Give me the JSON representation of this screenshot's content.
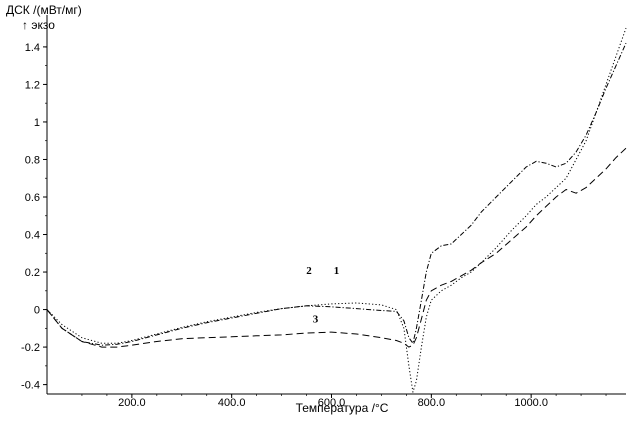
{
  "chart_data": {
    "type": "line",
    "title": "",
    "ylabel": "ДСК /(мВт/мг)",
    "exo_label": "↑ экзо",
    "xlabel": "Температура /°C",
    "xlim": [
      30,
      1190
    ],
    "ylim": [
      -0.45,
      1.57
    ],
    "xticks": [
      200,
      400,
      600,
      800,
      1000
    ],
    "xtick_labels": [
      "200.0",
      "400.0",
      "600.0",
      "800.0",
      "1000.0"
    ],
    "yticks": [
      -0.4,
      -0.2,
      0,
      0.2,
      0.4,
      0.6,
      0.8,
      1,
      1.2,
      1.4
    ],
    "ytick_labels": [
      "-0.4",
      "-0.2",
      "0",
      "0.2",
      "0.4",
      "0.6",
      "0.8",
      "1",
      "1.2",
      "1.4"
    ],
    "grid": false,
    "series": [
      {
        "name": "1",
        "style": "dotted",
        "x": [
          30,
          60,
          100,
          140,
          170,
          200,
          250,
          300,
          350,
          400,
          450,
          500,
          550,
          600,
          650,
          700,
          730,
          745,
          755,
          763,
          770,
          780,
          790,
          800,
          820,
          840,
          860,
          880,
          900,
          930,
          960,
          990,
          1010,
          1030,
          1050,
          1070,
          1090,
          1110,
          1130,
          1150,
          1170,
          1190
        ],
        "y": [
          0.0,
          -0.08,
          -0.15,
          -0.18,
          -0.18,
          -0.165,
          -0.13,
          -0.095,
          -0.065,
          -0.04,
          -0.015,
          0.005,
          0.02,
          0.03,
          0.035,
          0.025,
          0.0,
          -0.1,
          -0.3,
          -0.44,
          -0.38,
          -0.2,
          -0.04,
          0.05,
          0.1,
          0.13,
          0.17,
          0.2,
          0.25,
          0.33,
          0.42,
          0.5,
          0.56,
          0.6,
          0.65,
          0.7,
          0.8,
          0.9,
          1.05,
          1.2,
          1.35,
          1.5
        ]
      },
      {
        "name": "2",
        "style": "dashdot",
        "x": [
          30,
          60,
          100,
          140,
          170,
          200,
          250,
          300,
          350,
          400,
          450,
          500,
          550,
          600,
          650,
          700,
          730,
          745,
          755,
          763,
          770,
          780,
          790,
          800,
          820,
          840,
          860,
          880,
          900,
          930,
          960,
          990,
          1010,
          1030,
          1050,
          1070,
          1090,
          1110,
          1130,
          1150,
          1170,
          1190
        ],
        "y": [
          0.0,
          -0.1,
          -0.17,
          -0.19,
          -0.185,
          -0.17,
          -0.135,
          -0.1,
          -0.07,
          -0.045,
          -0.02,
          0.005,
          0.02,
          0.015,
          0.005,
          -0.005,
          -0.01,
          -0.06,
          -0.15,
          -0.18,
          -0.1,
          0.05,
          0.2,
          0.3,
          0.34,
          0.35,
          0.4,
          0.45,
          0.52,
          0.6,
          0.68,
          0.76,
          0.79,
          0.78,
          0.76,
          0.78,
          0.84,
          0.93,
          1.05,
          1.18,
          1.3,
          1.42
        ]
      },
      {
        "name": "3",
        "style": "dashed",
        "x": [
          30,
          60,
          100,
          140,
          170,
          200,
          250,
          300,
          350,
          400,
          450,
          500,
          550,
          600,
          650,
          700,
          730,
          745,
          755,
          763,
          770,
          780,
          790,
          800,
          820,
          840,
          860,
          880,
          900,
          930,
          960,
          990,
          1010,
          1030,
          1050,
          1070,
          1090,
          1110,
          1130,
          1150,
          1170,
          1190
        ],
        "y": [
          0.0,
          -0.1,
          -0.17,
          -0.2,
          -0.2,
          -0.19,
          -0.17,
          -0.155,
          -0.15,
          -0.145,
          -0.14,
          -0.135,
          -0.125,
          -0.12,
          -0.13,
          -0.15,
          -0.165,
          -0.18,
          -0.2,
          -0.19,
          -0.15,
          -0.05,
          0.05,
          0.1,
          0.13,
          0.15,
          0.18,
          0.21,
          0.25,
          0.3,
          0.37,
          0.44,
          0.5,
          0.55,
          0.6,
          0.64,
          0.62,
          0.65,
          0.7,
          0.75,
          0.81,
          0.86
        ]
      }
    ],
    "annotations": [
      {
        "text": "1",
        "x": 610,
        "y": 0.19
      },
      {
        "text": "2",
        "x": 555,
        "y": 0.19
      },
      {
        "text": "3",
        "x": 568,
        "y": -0.07
      }
    ]
  }
}
